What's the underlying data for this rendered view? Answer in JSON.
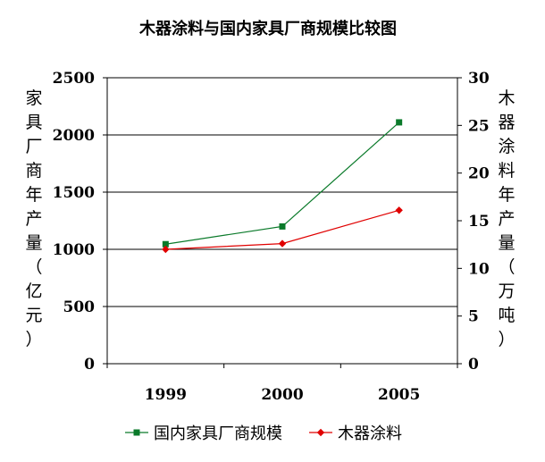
{
  "chart_data": {
    "type": "line",
    "title": "木器涂料与国内家具厂商规模比较图",
    "categories": [
      "1999",
      "2000",
      "2005"
    ],
    "y_left": {
      "label": "家具厂商年产量（亿元）",
      "range": [
        0,
        2500
      ],
      "ticks": [
        "0",
        "500",
        "1000",
        "1500",
        "2000",
        "2500"
      ]
    },
    "y_right": {
      "label": "木器涂料年产量（万吨）",
      "range": [
        0,
        30
      ],
      "ticks": [
        "0",
        "5",
        "10",
        "15",
        "20",
        "25",
        "30"
      ]
    },
    "series": [
      {
        "name": "国内家具厂商规模",
        "axis": "left",
        "values": [
          1045,
          1200,
          2110
        ],
        "color": "#0a7a2a",
        "marker": "square"
      },
      {
        "name": "木器涂料",
        "axis": "right",
        "values": [
          12.0,
          12.6,
          16.1
        ],
        "color": "#e00000",
        "marker": "diamond"
      }
    ],
    "gridlines": true,
    "legend_position": "bottom"
  }
}
